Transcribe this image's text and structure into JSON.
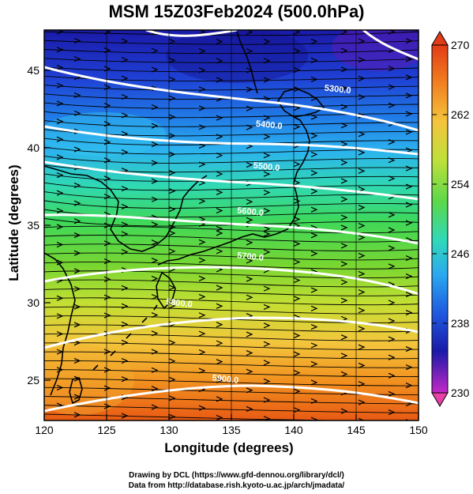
{
  "title": "MSM 15Z03Feb2024 (500.0hPa)",
  "xlabel": "Longitude (degrees)",
  "ylabel": "Latitude (degrees)",
  "credits": [
    "Drawing by DCL (https://www.gfd-dennou.org/library/dcl/)",
    "Data from http://database.rish.kyoto-u.ac.jp/arch/jmadata/"
  ],
  "map": {
    "lon_range": [
      120,
      150
    ],
    "lat_range": [
      22.4,
      47.6
    ],
    "lon_ticks": [
      "120",
      "125",
      "130",
      "135",
      "140",
      "145",
      "150"
    ],
    "lat_ticks": [
      "25",
      "30",
      "35",
      "40",
      "45"
    ],
    "temperature_field": "shaded",
    "wind_field": "streamlines with arrows, westerly",
    "contours": [
      {
        "label": "5300.0",
        "lon": 143.5,
        "lat": 43.6
      },
      {
        "label": "5400.0",
        "lon": 138.0,
        "lat": 41.3
      },
      {
        "label": "5500.0",
        "lon": 137.8,
        "lat": 38.6
      },
      {
        "label": "5600.0",
        "lon": 136.5,
        "lat": 35.7
      },
      {
        "label": "5700.0",
        "lon": 136.5,
        "lat": 32.8
      },
      {
        "label": "5800.0",
        "lon": 130.8,
        "lat": 29.8
      },
      {
        "label": "5900.0",
        "lon": 134.5,
        "lat": 24.9
      }
    ]
  },
  "colorbar": {
    "ticks": [
      "270",
      "262",
      "254",
      "246",
      "238",
      "230"
    ],
    "range": [
      230,
      270
    ],
    "colors": [
      "#c428c8",
      "#1a1aa8",
      "#1f5ae0",
      "#2aa6ef",
      "#30d7c8",
      "#3fd85a",
      "#7fd836",
      "#cfe53a",
      "#f5c640",
      "#f08a1f",
      "#e4451a"
    ]
  }
}
